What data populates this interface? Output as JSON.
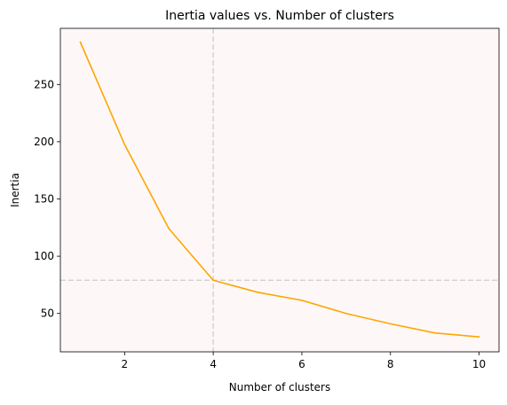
{
  "chart_data": {
    "type": "line",
    "title": "Inertia values vs. Number of clusters",
    "xlabel": "Number of clusters",
    "ylabel": "Inertia",
    "xlim": [
      0.55,
      10.45
    ],
    "ylim": [
      16.5,
      299.0
    ],
    "x_ticks": [
      2,
      4,
      6,
      8,
      10
    ],
    "y_ticks": [
      50,
      100,
      150,
      200,
      250
    ],
    "grid": false,
    "legend": "none",
    "series": [
      {
        "color": "#ffa500",
        "x": [
          1,
          2,
          3,
          4,
          5,
          6,
          7,
          8,
          9,
          10
        ],
        "values": [
          287.0,
          197.5,
          124.0,
          79.0,
          68.5,
          61.5,
          50.0,
          41.0,
          33.0,
          29.5
        ]
      }
    ],
    "reference_lines": {
      "vertical_x": 4,
      "horizontal_y": 79.0,
      "color": "#d3d3d3",
      "style": "dashed"
    },
    "plot_background": "#fdf8f7"
  }
}
